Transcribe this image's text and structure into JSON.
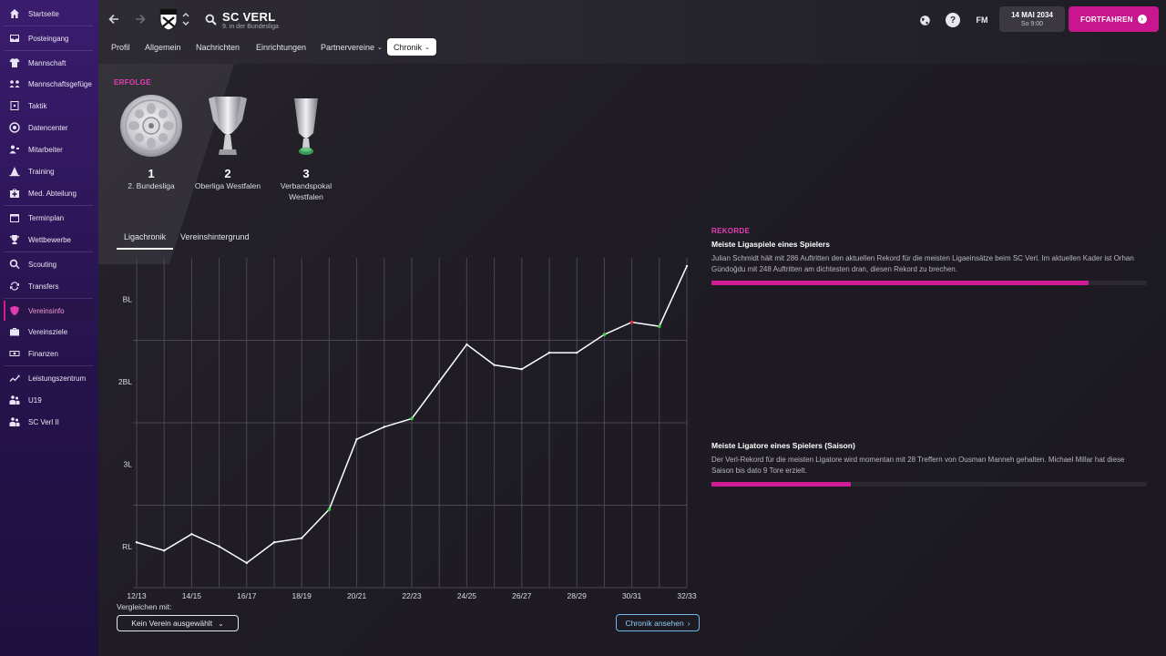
{
  "sidebar": {
    "items": [
      {
        "label": "Startseite",
        "icon": "home-icon"
      },
      {
        "label": "Posteingang",
        "icon": "inbox-icon"
      },
      {
        "label": "Mannschaft",
        "icon": "shirt-icon"
      },
      {
        "label": "Mannschaftsgefüge",
        "icon": "dynamics-icon"
      },
      {
        "label": "Taktik",
        "icon": "tactics-board-icon"
      },
      {
        "label": "Datencenter",
        "icon": "data-hub-icon"
      },
      {
        "label": "Mitarbeiter",
        "icon": "staff-icon"
      },
      {
        "label": "Training",
        "icon": "training-cone-icon"
      },
      {
        "label": "Med. Abteilung",
        "icon": "medical-kit-icon"
      },
      {
        "label": "Terminplan",
        "icon": "calendar-icon"
      },
      {
        "label": "Wettbewerbe",
        "icon": "trophy-icon"
      },
      {
        "label": "Scouting",
        "icon": "magnifier-icon"
      },
      {
        "label": "Transfers",
        "icon": "transfer-arrows-icon"
      },
      {
        "label": "Vereinsinfo",
        "icon": "shield-icon"
      },
      {
        "label": "Vereinsziele",
        "icon": "briefcase-icon"
      },
      {
        "label": "Finanzen",
        "icon": "money-icon"
      },
      {
        "label": "Leistungszentrum",
        "icon": "trend-icon"
      },
      {
        "label": "U19",
        "icon": "youth-team-icon"
      },
      {
        "label": "SC Verl II",
        "icon": "reserve-team-icon"
      }
    ]
  },
  "header": {
    "club_name": "SC VERL",
    "subtitle": "9. in der Bundesliga",
    "tabs": [
      {
        "label": "Profil"
      },
      {
        "label": "Allgemein"
      },
      {
        "label": "Nachrichten"
      },
      {
        "label": "Einrichtungen"
      },
      {
        "label": "Partnervereine",
        "dropdown": "⌄"
      },
      {
        "label": "Chronik",
        "dropdown": "⌄"
      }
    ],
    "fm_label": "FM",
    "help_label": "?",
    "date": "14 MAI 2034",
    "time": "So 9:00",
    "continue_label": "FORTFAHREN",
    "continue_arrow": "›"
  },
  "honours": {
    "section_label": "ERFOLGE",
    "items": [
      {
        "count": "1",
        "name": "2. Bundesliga"
      },
      {
        "count": "2",
        "name": "Oberliga Westfalen"
      },
      {
        "count": "3",
        "name": "Verbandspokal Westfalen"
      }
    ]
  },
  "chart_tabs": [
    {
      "label": "Ligachronik"
    },
    {
      "label": "Vereinshintergrund"
    }
  ],
  "chart_data": {
    "type": "line",
    "x": [
      "12/13",
      "13/14",
      "14/15",
      "15/16",
      "16/17",
      "17/18",
      "18/19",
      "19/20",
      "20/21",
      "21/22",
      "22/23",
      "23/24",
      "24/25",
      "25/26",
      "26/27",
      "27/28",
      "28/29",
      "29/30",
      "30/31",
      "31/32",
      "32/33"
    ],
    "x_tick_labels": [
      "12/13",
      "14/15",
      "16/17",
      "18/19",
      "20/21",
      "22/23",
      "24/25",
      "26/27",
      "28/29",
      "30/31",
      "32/33"
    ],
    "y_tick_labels": [
      "BL",
      "2BL",
      "3L",
      "RL"
    ],
    "series": [
      {
        "values": [
          3.95,
          4.05,
          3.85,
          4.0,
          4.2,
          3.95,
          3.9,
          3.55,
          2.7,
          2.55,
          2.45,
          2.0,
          1.55,
          1.8,
          1.85,
          1.65,
          1.65,
          1.43,
          1.28,
          1.33,
          0.6
        ],
        "markers": {
          "7": "#3fd24a",
          "10": "#3fd24a",
          "17": "#3fd24a",
          "18": "#e0303a",
          "19": "#3fd24a"
        }
      }
    ],
    "ylim": [
      0.5,
      4.5
    ],
    "grid": true,
    "line_color": "#ffffff"
  },
  "compare": {
    "label": "Vergleichen mit:",
    "value": "Kein Verein ausgewählt",
    "chevron": "⌄"
  },
  "chronik_button": {
    "label": "Chronik ansehen",
    "chevron": "›"
  },
  "records": {
    "section_label": "REKORDE",
    "items": [
      {
        "title": "Meiste Ligaspiele eines Spielers",
        "description": "Julian Schmidt hält mit 286 Auftritten den aktuellen Rekord für die meisten Ligaeinsätze beim SC Verl. Im aktuellen Kader ist Orhan Gündoğdu mit 248 Auftritten am dichtesten dran, diesen Rekord zu brechen.",
        "progress": 0.867
      },
      {
        "title": "Meiste Ligatore eines Spielers (Saison)",
        "description": "Der Verl-Rekord für die meisten Ligatore wird momentan mit 28 Treffern von Ousman Manneh gehalten. Michael Millar hat diese Saison bis dato 9 Tore erzielt.",
        "progress": 0.321
      }
    ]
  }
}
